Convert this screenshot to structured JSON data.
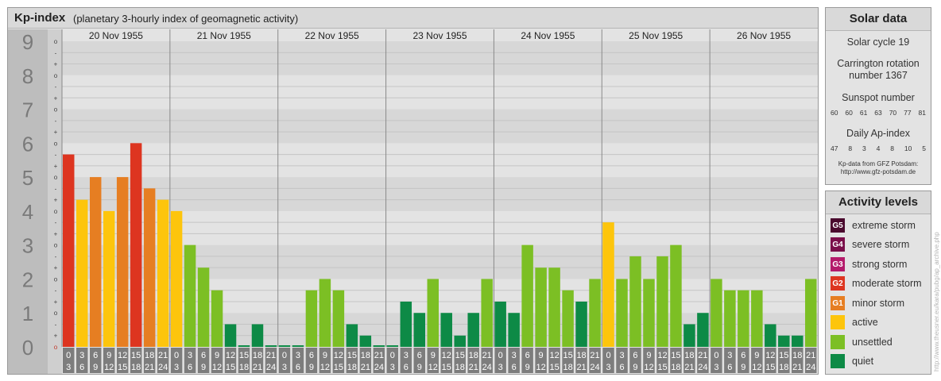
{
  "header": {
    "title": "Kp-index",
    "subtitle": "(planetary 3-hourly index of geomagnetic activity)"
  },
  "chart_data": {
    "type": "bar",
    "title": "Kp-index",
    "subtitle": "(planetary 3-hourly index of geomagnetic activity)",
    "ylim": [
      0,
      9
    ],
    "y_ticks": [
      "0",
      "1",
      "2",
      "3",
      "4",
      "5",
      "6",
      "7",
      "8",
      "9"
    ],
    "minor_ticks": [
      "o",
      "+",
      "-"
    ],
    "days": [
      "20 Nov 1955",
      "21 Nov 1955",
      "22 Nov 1955",
      "23 Nov 1955",
      "24 Nov 1955",
      "25 Nov 1955",
      "26 Nov 1955"
    ],
    "slot_top": [
      "0",
      "3",
      "6",
      "9",
      "12",
      "15",
      "18",
      "21"
    ],
    "slot_bottom": [
      "3",
      "6",
      "9",
      "12",
      "15",
      "18",
      "21",
      "24"
    ],
    "values": [
      [
        5.667,
        4.333,
        5.0,
        4.0,
        5.0,
        6.0,
        4.667,
        4.333
      ],
      [
        4.0,
        3.0,
        2.333,
        1.667,
        0.667,
        0.0,
        0.667,
        0.0
      ],
      [
        0.0,
        0.0,
        1.667,
        2.0,
        1.667,
        0.667,
        0.333,
        0.0
      ],
      [
        0.0,
        1.333,
        1.0,
        2.0,
        1.0,
        0.333,
        1.0,
        2.0
      ],
      [
        1.333,
        1.0,
        3.0,
        2.333,
        2.333,
        1.667,
        1.333,
        2.0
      ],
      [
        3.667,
        2.0,
        2.667,
        2.0,
        2.667,
        3.0,
        0.667,
        1.0
      ],
      [
        2.0,
        1.667,
        1.667,
        1.667,
        0.667,
        0.333,
        0.333,
        2.0
      ]
    ],
    "colors": {
      "quiet": "#0d8a46",
      "unsettled": "#7cbf24",
      "active": "#fdc50c",
      "minor": "#e67e22",
      "moderate": "#dd3520"
    }
  },
  "solar": {
    "title": "Solar data",
    "cycle": "Solar cycle 19",
    "carrington": [
      "Carrington rotation",
      "number 1367"
    ],
    "sunspot_title": "Sunspot number",
    "sunspots": [
      "60",
      "60",
      "61",
      "63",
      "70",
      "77",
      "81"
    ],
    "ap_title": "Daily Ap-index",
    "ap": [
      "47",
      "8",
      "3",
      "4",
      "8",
      "10",
      "5"
    ],
    "credit": [
      "Kp-data from GFZ Potsdam:",
      "http://www.gfz-potsdam.de"
    ]
  },
  "levels": {
    "title": "Activity levels",
    "items": [
      {
        "badge": "G5",
        "label": "extreme storm",
        "color": "#4a0a2e"
      },
      {
        "badge": "G4",
        "label": "severe storm",
        "color": "#7a0e4a"
      },
      {
        "badge": "G3",
        "label": "strong storm",
        "color": "#b41a6b"
      },
      {
        "badge": "G2",
        "label": "moderate storm",
        "color": "#dd3520"
      },
      {
        "badge": "G1",
        "label": "minor storm",
        "color": "#e67e22"
      },
      {
        "badge": "",
        "label": "active",
        "color": "#fdc50c"
      },
      {
        "badge": "",
        "label": "unsettled",
        "color": "#7cbf24"
      },
      {
        "badge": "",
        "label": "quiet",
        "color": "#0d8a46"
      }
    ]
  },
  "vertical_credit": "http://www.theusner.eu/kara/pubg/ap_archive.php"
}
